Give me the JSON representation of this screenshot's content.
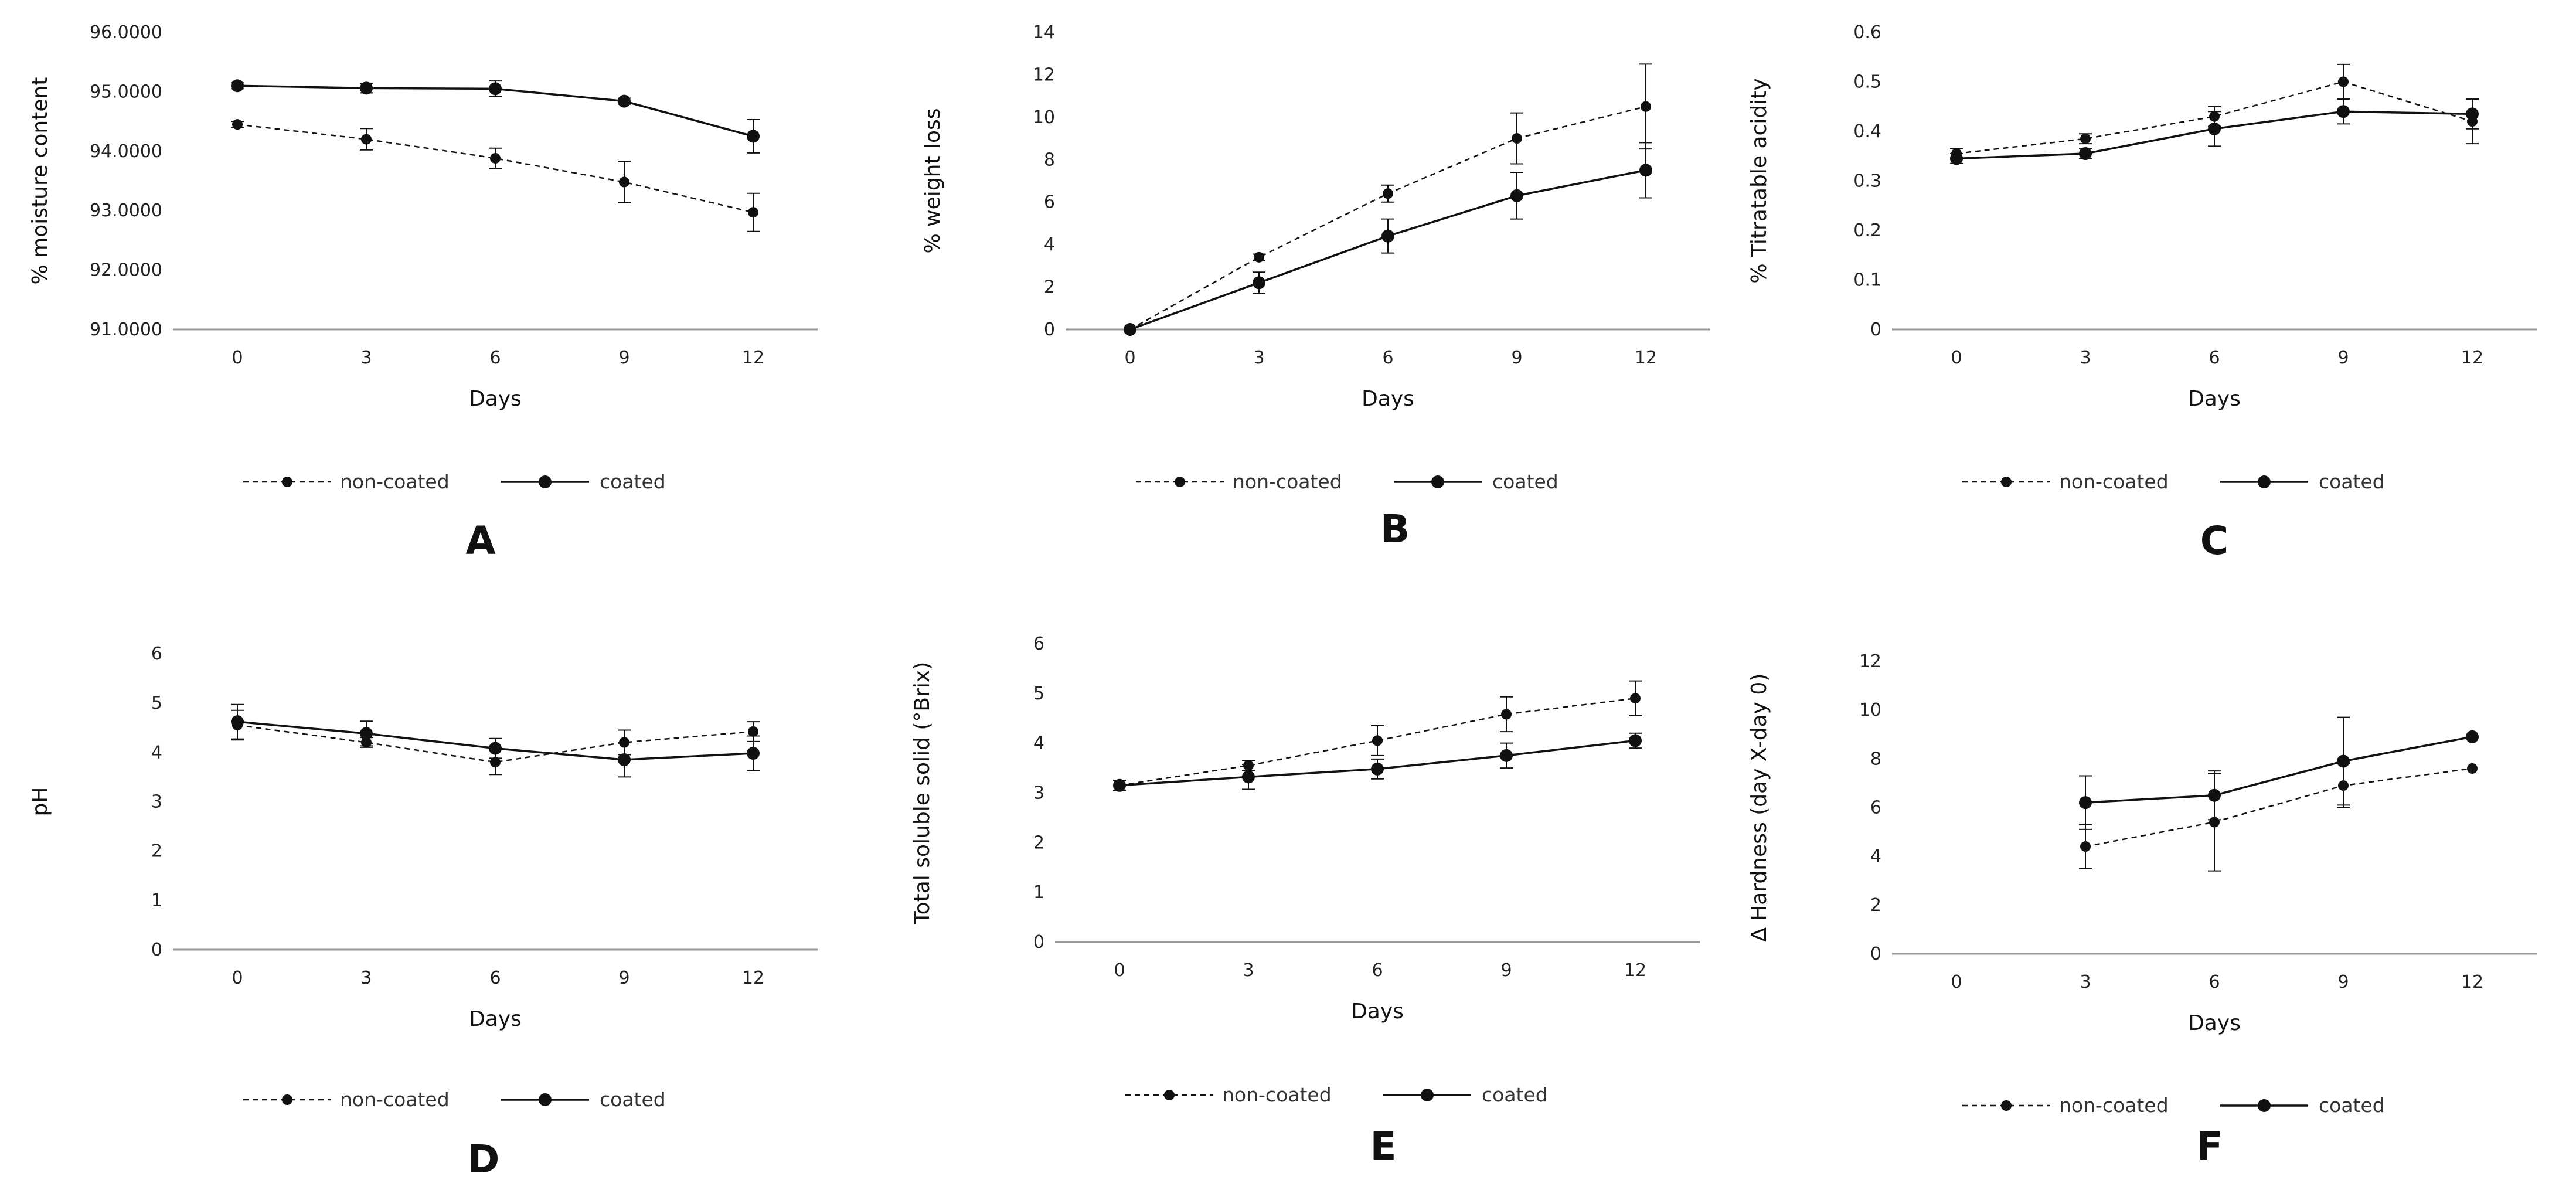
{
  "legend": {
    "non_coated": "non-coated",
    "coated": "coated"
  },
  "colors": {
    "line": "#111111",
    "axis": "#999999"
  },
  "chart_data": [
    {
      "type": "line",
      "panel": "A",
      "xlabel": "Days",
      "ylabel": "% moisture content",
      "categories": [
        "0",
        "3",
        "6",
        "9",
        "12"
      ],
      "ylim": [
        91,
        96
      ],
      "ystep": 1,
      "ytick_labels": [
        "91.0000",
        "92.0000",
        "93.0000",
        "94.0000",
        "95.0000",
        "96.0000"
      ],
      "series": [
        {
          "name": "non-coated",
          "style": "dashed",
          "values": [
            94.45,
            94.2,
            93.88,
            93.48,
            92.97
          ],
          "errors": [
            0.05,
            0.18,
            0.17,
            0.35,
            0.32
          ]
        },
        {
          "name": "coated",
          "style": "solid",
          "values": [
            95.1,
            95.06,
            95.05,
            94.84,
            94.25
          ],
          "errors": [
            0.05,
            0.08,
            0.13,
            0.05,
            0.28
          ]
        }
      ]
    },
    {
      "type": "line",
      "panel": "B",
      "xlabel": "Days",
      "ylabel": "% weight loss",
      "categories": [
        "0",
        "3",
        "6",
        "9",
        "12"
      ],
      "ylim": [
        0,
        14
      ],
      "ystep": 2,
      "ytick_labels": [
        "0",
        "2",
        "4",
        "6",
        "8",
        "10",
        "12",
        "14"
      ],
      "series": [
        {
          "name": "non-coated",
          "style": "dashed",
          "values": [
            0,
            3.4,
            6.4,
            9.0,
            10.5
          ],
          "errors": [
            0,
            0.15,
            0.4,
            1.2,
            2.0
          ]
        },
        {
          "name": "coated",
          "style": "solid",
          "values": [
            0,
            2.2,
            4.4,
            6.3,
            7.5
          ],
          "errors": [
            0,
            0.5,
            0.8,
            1.1,
            1.3
          ]
        }
      ]
    },
    {
      "type": "line",
      "panel": "C",
      "xlabel": "Days",
      "ylabel": "% Titratable acidity",
      "categories": [
        "0",
        "3",
        "6",
        "9",
        "12"
      ],
      "ylim": [
        0,
        0.6
      ],
      "ystep": 0.1,
      "ytick_labels": [
        "0",
        "0.1",
        "0.2",
        "0.3",
        "0.4",
        "0.5",
        "0.6"
      ],
      "series": [
        {
          "name": "non-coated",
          "style": "dashed",
          "values": [
            0.355,
            0.385,
            0.43,
            0.5,
            0.42
          ],
          "errors": [
            0.01,
            0.01,
            0.02,
            0.035,
            0.045
          ]
        },
        {
          "name": "coated",
          "style": "solid",
          "values": [
            0.345,
            0.355,
            0.405,
            0.44,
            0.435
          ],
          "errors": [
            0.01,
            0.01,
            0.035,
            0.025,
            0.03
          ]
        }
      ]
    },
    {
      "type": "line",
      "panel": "D",
      "xlabel": "Days",
      "ylabel": "pH",
      "categories": [
        "0",
        "3",
        "6",
        "9",
        "12"
      ],
      "ylim": [
        0,
        6
      ],
      "ystep": 1,
      "ytick_labels": [
        "0",
        "1",
        "2",
        "3",
        "4",
        "5",
        "6"
      ],
      "series": [
        {
          "name": "non-coated",
          "style": "dashed",
          "values": [
            4.55,
            4.2,
            3.8,
            4.2,
            4.42
          ],
          "errors": [
            0.3,
            0.1,
            0.25,
            0.25,
            0.2
          ]
        },
        {
          "name": "coated",
          "style": "solid",
          "values": [
            4.62,
            4.38,
            4.08,
            3.85,
            3.98
          ],
          "errors": [
            0.35,
            0.25,
            0.2,
            0.35,
            0.35
          ]
        }
      ]
    },
    {
      "type": "line",
      "panel": "E",
      "xlabel": "Days",
      "ylabel": "Total soluble solid (°Brix)",
      "categories": [
        "0",
        "3",
        "6",
        "9",
        "12"
      ],
      "ylim": [
        0,
        6
      ],
      "ystep": 1,
      "ytick_labels": [
        "0",
        "1",
        "2",
        "3",
        "4",
        "5",
        "6"
      ],
      "series": [
        {
          "name": "non-coated",
          "style": "dashed",
          "values": [
            3.15,
            3.55,
            4.05,
            4.58,
            4.9
          ],
          "errors": [
            0.1,
            0.1,
            0.3,
            0.35,
            0.35
          ]
        },
        {
          "name": "coated",
          "style": "solid",
          "values": [
            3.15,
            3.32,
            3.48,
            3.75,
            4.05
          ],
          "errors": [
            0.1,
            0.25,
            0.2,
            0.25,
            0.15
          ]
        }
      ]
    },
    {
      "type": "line",
      "panel": "F",
      "xlabel": "Days",
      "ylabel": "∆ Hardness (day X-day 0)",
      "categories": [
        "0",
        "3",
        "6",
        "9",
        "12"
      ],
      "ylim": [
        0,
        12
      ],
      "ystep": 2,
      "ytick_labels": [
        "0",
        "2",
        "4",
        "6",
        "8",
        "10",
        "12"
      ],
      "series": [
        {
          "name": "non-coated",
          "style": "dashed",
          "values": [
            null,
            4.4,
            5.4,
            6.9,
            7.6
          ],
          "errors": [
            null,
            0.9,
            2.0,
            0.9,
            0
          ]
        },
        {
          "name": "coated",
          "style": "solid",
          "values": [
            null,
            6.2,
            6.5,
            7.9,
            8.9
          ],
          "errors": [
            null,
            1.1,
            1.0,
            1.8,
            0
          ]
        }
      ]
    }
  ]
}
